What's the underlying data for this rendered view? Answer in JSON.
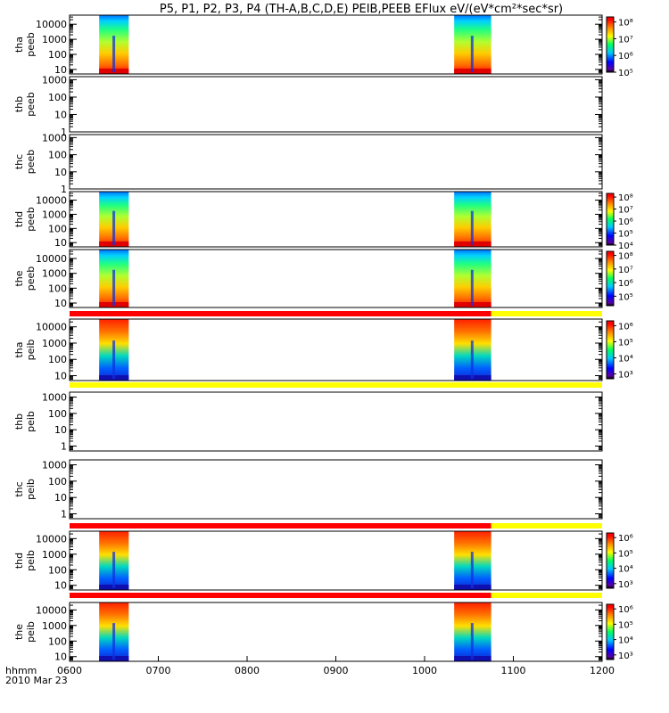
{
  "chart_data": {
    "type": "heatmap",
    "title": "P5, P1, P2, P3, P4 (TH-A,B,C,D,E) PEIB,PEEB EFlux eV/(eV*cm²*sec*sr)",
    "date": "2010 Mar 23",
    "x_axis_label": "hhmm",
    "x_ticks": [
      "0600",
      "0700",
      "0800",
      "0900",
      "1000",
      "1100",
      "1200"
    ],
    "x_range": [
      "0600",
      "1200"
    ],
    "energy_axis": "log",
    "colormap": "rainbow",
    "panels": [
      {
        "id": "tha_peeb",
        "label_line1": "tha",
        "label_line2": "peeb",
        "y_ticks": [
          "10",
          "100",
          "1000",
          "10000"
        ],
        "ylim": [
          5,
          40000
        ],
        "colorbar": [
          "10⁵",
          "10⁶",
          "10⁷",
          "10⁸"
        ],
        "colorbar_range": [
          100000.0,
          200000000.0
        ],
        "data_intervals": [
          [
            "0620",
            "0640"
          ],
          [
            "1020",
            "1045"
          ]
        ]
      },
      {
        "id": "thb_peeb",
        "label_line1": "thb",
        "label_line2": "peeb",
        "y_ticks": [
          "1",
          "10",
          "100",
          "1000"
        ],
        "ylim": [
          1,
          1500
        ],
        "colorbar": [],
        "data_intervals": []
      },
      {
        "id": "thc_peeb",
        "label_line1": "thc",
        "label_line2": "peeb",
        "y_ticks": [
          "1",
          "10",
          "100",
          "1000"
        ],
        "ylim": [
          1,
          1500
        ],
        "colorbar": [],
        "data_intervals": []
      },
      {
        "id": "thd_peeb",
        "label_line1": "thd",
        "label_line2": "peeb",
        "y_ticks": [
          "10",
          "100",
          "1000",
          "10000"
        ],
        "ylim": [
          5,
          40000
        ],
        "colorbar": [
          "10⁴",
          "10⁵",
          "10⁶",
          "10⁷",
          "10⁸"
        ],
        "colorbar_range": [
          10000.0,
          200000000.0
        ],
        "data_intervals": [
          [
            "0620",
            "0640"
          ],
          [
            "1020",
            "1045"
          ]
        ]
      },
      {
        "id": "the_peeb",
        "label_line1": "the",
        "label_line2": "peeb",
        "y_ticks": [
          "10",
          "100",
          "1000",
          "10000"
        ],
        "ylim": [
          5,
          40000
        ],
        "colorbar": [
          "10⁵",
          "10⁶",
          "10⁷",
          "10⁸"
        ],
        "colorbar_range": [
          20000.0,
          200000000.0
        ],
        "data_intervals": [
          [
            "0620",
            "0640"
          ],
          [
            "1020",
            "1045"
          ]
        ]
      },
      {
        "id": "tha_peib",
        "label_line1": "tha",
        "label_line2": "peib",
        "y_ticks": [
          "10",
          "100",
          "1000",
          "10000"
        ],
        "ylim": [
          5,
          30000
        ],
        "colorbar": [
          "10³",
          "10⁴",
          "10⁵",
          "10⁶"
        ],
        "colorbar_range": [
          500.0,
          2000000.0
        ],
        "data_intervals": [
          [
            "0620",
            "0640"
          ],
          [
            "1020",
            "1045"
          ]
        ]
      },
      {
        "id": "thb_peib",
        "label_line1": "thb",
        "label_line2": "peib",
        "y_ticks": [
          "1",
          "10",
          "100",
          "1000"
        ],
        "ylim": [
          0.5,
          2000
        ],
        "colorbar": [],
        "data_intervals": []
      },
      {
        "id": "thc_peib",
        "label_line1": "thc",
        "label_line2": "peib",
        "y_ticks": [
          "1",
          "10",
          "100",
          "1000"
        ],
        "ylim": [
          0.5,
          2000
        ],
        "colorbar": [],
        "data_intervals": []
      },
      {
        "id": "thd_peib",
        "label_line1": "thd",
        "label_line2": "peib",
        "y_ticks": [
          "10",
          "100",
          "1000",
          "10000"
        ],
        "ylim": [
          5,
          30000
        ],
        "colorbar": [
          "10³",
          "10⁴",
          "10⁵",
          "10⁶"
        ],
        "colorbar_range": [
          500.0,
          2000000.0
        ],
        "data_intervals": [
          [
            "0620",
            "0640"
          ],
          [
            "1020",
            "1045"
          ]
        ]
      },
      {
        "id": "the_peib",
        "label_line1": "the",
        "label_line2": "peib",
        "y_ticks": [
          "10",
          "100",
          "1000",
          "10000"
        ],
        "ylim": [
          5,
          30000
        ],
        "colorbar": [
          "10³",
          "10⁴",
          "10⁵",
          "10⁶"
        ],
        "colorbar_range": [
          500.0,
          2000000.0
        ],
        "data_intervals": [
          [
            "0620",
            "0640"
          ],
          [
            "1020",
            "1045"
          ]
        ]
      }
    ],
    "status_bars": [
      {
        "above_panel": "tha_peib",
        "segments": [
          {
            "from": "0600",
            "to": "1045",
            "color": "#ff0000"
          },
          {
            "from": "1045",
            "to": "1200",
            "color": "#ffff00"
          }
        ]
      },
      {
        "above_panel": "thb_peib",
        "segments": [
          {
            "from": "0600",
            "to": "1200",
            "color": "#ffff00"
          }
        ]
      },
      {
        "above_panel": "thd_peib",
        "segments": [
          {
            "from": "0600",
            "to": "1045",
            "color": "#ff0000"
          },
          {
            "from": "1045",
            "to": "1200",
            "color": "#ffff00"
          }
        ]
      },
      {
        "above_panel": "the_peib",
        "segments": [
          {
            "from": "0600",
            "to": "1045",
            "color": "#ff0000"
          },
          {
            "from": "1045",
            "to": "1200",
            "color": "#ffff00"
          }
        ]
      }
    ]
  }
}
